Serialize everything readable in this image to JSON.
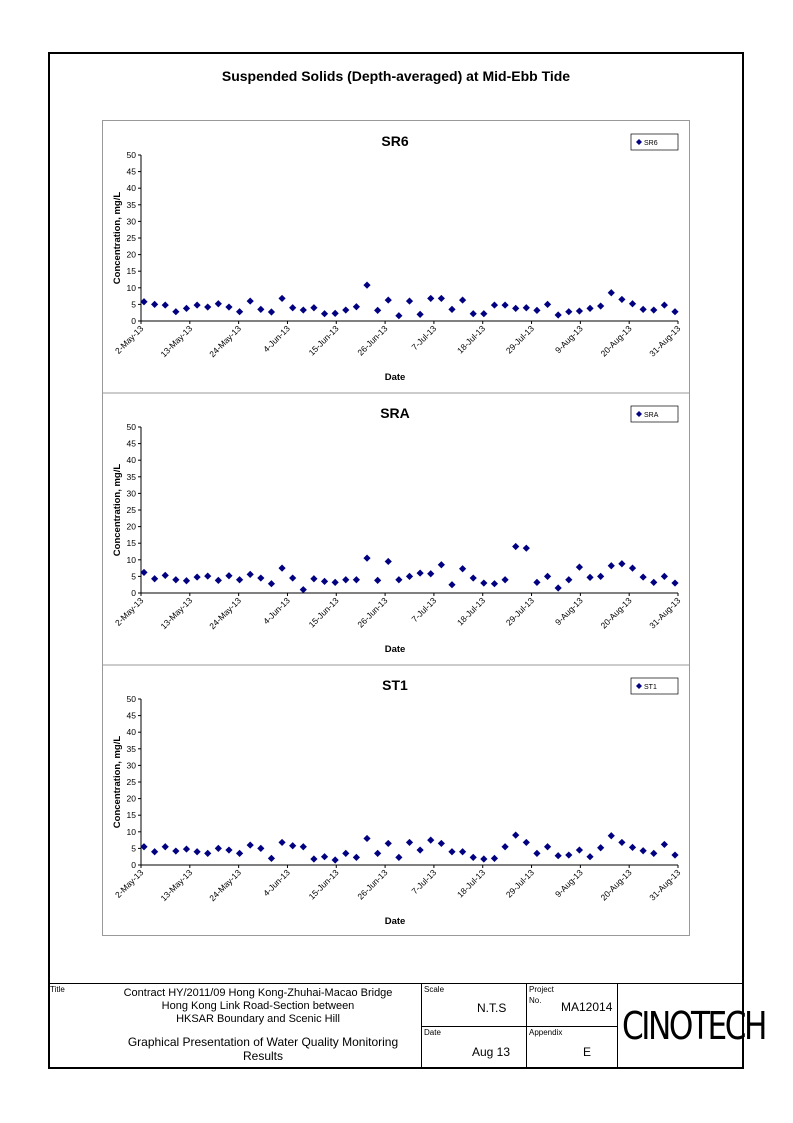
{
  "page": {
    "title": "Suspended Solids (Depth-averaged) at Mid-Ebb Tide"
  },
  "chart_data": [
    {
      "type": "scatter",
      "title": "SR6",
      "xlabel": "Date",
      "ylabel": "Concentration, mg/L",
      "ylim": [
        0,
        50
      ],
      "yticks": [
        "0",
        "5",
        "10",
        "15",
        "20",
        "25",
        "30",
        "35",
        "40",
        "45",
        "50"
      ],
      "xtick_labels": [
        "2-May-13",
        "13-May-13",
        "24-May-13",
        "4-Jun-13",
        "15-Jun-13",
        "26-Jun-13",
        "7-Jul-13",
        "18-Jul-13",
        "29-Jul-13",
        "9-Aug-13",
        "20-Aug-13",
        "31-Aug-13"
      ],
      "legend": "top-right",
      "series": [
        {
          "name": "SR6",
          "color": "#000080",
          "points": [
            [
              0,
              5.8
            ],
            [
              1,
              5
            ],
            [
              2,
              4.8
            ],
            [
              3,
              2.8
            ],
            [
              4,
              3.8
            ],
            [
              5,
              4.8
            ],
            [
              6,
              4.2
            ],
            [
              7,
              5.2
            ],
            [
              8,
              4.2
            ],
            [
              9,
              2.8
            ],
            [
              10,
              6
            ],
            [
              11,
              3.5
            ],
            [
              12,
              2.7
            ],
            [
              13,
              6.8
            ],
            [
              14,
              4
            ],
            [
              15,
              3.3
            ],
            [
              16,
              4
            ],
            [
              17,
              2.2
            ],
            [
              18,
              2.3
            ],
            [
              19,
              3.3
            ],
            [
              20,
              4.3
            ],
            [
              21,
              10.8
            ],
            [
              22,
              3.2
            ],
            [
              23,
              6.3
            ],
            [
              24,
              1.6
            ],
            [
              25,
              6
            ],
            [
              26,
              2
            ],
            [
              27,
              6.8
            ],
            [
              28,
              6.8
            ],
            [
              29,
              3.5
            ],
            [
              30,
              6.3
            ],
            [
              31,
              2.2
            ],
            [
              32,
              2.2
            ],
            [
              33,
              4.8
            ],
            [
              34,
              4.8
            ],
            [
              35,
              3.8
            ],
            [
              36,
              4
            ],
            [
              37,
              3.2
            ],
            [
              38,
              5
            ],
            [
              39,
              1.8
            ],
            [
              40,
              2.8
            ],
            [
              41,
              3
            ],
            [
              42,
              3.8
            ],
            [
              43,
              4.5
            ],
            [
              44,
              8.5
            ],
            [
              45,
              6.5
            ],
            [
              46,
              5.2
            ],
            [
              47,
              3.5
            ],
            [
              48,
              3.3
            ],
            [
              49,
              4.8
            ],
            [
              50,
              2.8
            ]
          ]
        }
      ]
    },
    {
      "type": "scatter",
      "title": "SRA",
      "xlabel": "Date",
      "ylabel": "Concentration, mg/L",
      "ylim": [
        0,
        50
      ],
      "yticks": [
        "0",
        "5",
        "10",
        "15",
        "20",
        "25",
        "30",
        "35",
        "40",
        "45",
        "50"
      ],
      "xtick_labels": [
        "2-May-13",
        "13-May-13",
        "24-May-13",
        "4-Jun-13",
        "15-Jun-13",
        "26-Jun-13",
        "7-Jul-13",
        "18-Jul-13",
        "29-Jul-13",
        "9-Aug-13",
        "20-Aug-13",
        "31-Aug-13"
      ],
      "legend": "top-right",
      "series": [
        {
          "name": "SRA",
          "color": "#000080",
          "points": [
            [
              0,
              6.2
            ],
            [
              1,
              4.3
            ],
            [
              2,
              5.3
            ],
            [
              3,
              4
            ],
            [
              4,
              3.7
            ],
            [
              5,
              4.8
            ],
            [
              6,
              5.1
            ],
            [
              7,
              3.8
            ],
            [
              8,
              5.2
            ],
            [
              9,
              4
            ],
            [
              10,
              5.6
            ],
            [
              11,
              4.5
            ],
            [
              12,
              2.8
            ],
            [
              13,
              7.5
            ],
            [
              14,
              4.5
            ],
            [
              15,
              1
            ],
            [
              16,
              4.3
            ],
            [
              17,
              3.5
            ],
            [
              18,
              3.2
            ],
            [
              19,
              4
            ],
            [
              20,
              4
            ],
            [
              21,
              10.5
            ],
            [
              22,
              3.8
            ],
            [
              23,
              9.5
            ],
            [
              24,
              4
            ],
            [
              25,
              5
            ],
            [
              26,
              6
            ],
            [
              27,
              5.8
            ],
            [
              28,
              8.5
            ],
            [
              29,
              2.5
            ],
            [
              30,
              7.3
            ],
            [
              31,
              4.5
            ],
            [
              32,
              3
            ],
            [
              33,
              2.8
            ],
            [
              34,
              4
            ],
            [
              35,
              14
            ],
            [
              36,
              13.5
            ],
            [
              37,
              3.2
            ],
            [
              38,
              5
            ],
            [
              39,
              1.5
            ],
            [
              40,
              4
            ],
            [
              41,
              7.8
            ],
            [
              42,
              4.7
            ],
            [
              43,
              5
            ],
            [
              44,
              8.2
            ],
            [
              45,
              8.8
            ],
            [
              46,
              7.5
            ],
            [
              47,
              4.8
            ],
            [
              48,
              3.2
            ],
            [
              49,
              5
            ],
            [
              50,
              3
            ]
          ]
        }
      ]
    },
    {
      "type": "scatter",
      "title": "ST1",
      "xlabel": "Date",
      "ylabel": "Concentration, mg/L",
      "ylim": [
        0,
        50
      ],
      "yticks": [
        "0",
        "5",
        "10",
        "15",
        "20",
        "25",
        "30",
        "35",
        "40",
        "45",
        "50"
      ],
      "xtick_labels": [
        "2-May-13",
        "13-May-13",
        "24-May-13",
        "4-Jun-13",
        "15-Jun-13",
        "26-Jun-13",
        "7-Jul-13",
        "18-Jul-13",
        "29-Jul-13",
        "9-Aug-13",
        "20-Aug-13",
        "31-Aug-13"
      ],
      "legend": "top-right",
      "series": [
        {
          "name": "ST1",
          "color": "#000080",
          "points": [
            [
              0,
              5.5
            ],
            [
              1,
              4
            ],
            [
              2,
              5.5
            ],
            [
              3,
              4.2
            ],
            [
              4,
              4.8
            ],
            [
              5,
              4
            ],
            [
              6,
              3.5
            ],
            [
              7,
              5
            ],
            [
              8,
              4.5
            ],
            [
              9,
              3.5
            ],
            [
              10,
              6
            ],
            [
              11,
              5
            ],
            [
              12,
              2
            ],
            [
              13,
              6.8
            ],
            [
              14,
              5.8
            ],
            [
              15,
              5.5
            ],
            [
              16,
              1.8
            ],
            [
              17,
              2.5
            ],
            [
              18,
              1.5
            ],
            [
              19,
              3.5
            ],
            [
              20,
              2.3
            ],
            [
              21,
              8
            ],
            [
              22,
              3.5
            ],
            [
              23,
              6.5
            ],
            [
              24,
              2.3
            ],
            [
              25,
              6.8
            ],
            [
              26,
              4.5
            ],
            [
              27,
              7.5
            ],
            [
              28,
              6.5
            ],
            [
              29,
              4
            ],
            [
              30,
              4
            ],
            [
              31,
              2.3
            ],
            [
              32,
              1.8
            ],
            [
              33,
              2
            ],
            [
              34,
              5.5
            ],
            [
              35,
              9
            ],
            [
              36,
              6.8
            ],
            [
              37,
              3.5
            ],
            [
              38,
              5.5
            ],
            [
              39,
              2.8
            ],
            [
              40,
              3
            ],
            [
              41,
              4.5
            ],
            [
              42,
              2.5
            ],
            [
              43,
              5.2
            ],
            [
              44,
              8.8
            ],
            [
              45,
              6.8
            ],
            [
              46,
              5.3
            ],
            [
              47,
              4.3
            ],
            [
              48,
              3.5
            ],
            [
              49,
              6.2
            ],
            [
              50,
              3
            ]
          ]
        }
      ]
    }
  ],
  "title_block": {
    "title_label": "Title",
    "title_lines": [
      "Contract HY/2011/09 Hong Kong-Zhuhai-Macao Bridge",
      "Hong Kong Link Road-Section between",
      "HKSAR Boundary and Scenic Hill"
    ],
    "subtitle_lines": [
      "Graphical Presentation of Water Quality Monitoring",
      "Results"
    ],
    "scale_label": "Scale",
    "scale_value": "N.T.S",
    "project_label": "Project",
    "project_no_label": "No.",
    "project_no": "MA12014",
    "date_label": "Date",
    "date_value": "Aug 13",
    "appendix_label": "Appendix",
    "appendix_value": "E",
    "logo_text": "CINOTECH"
  }
}
